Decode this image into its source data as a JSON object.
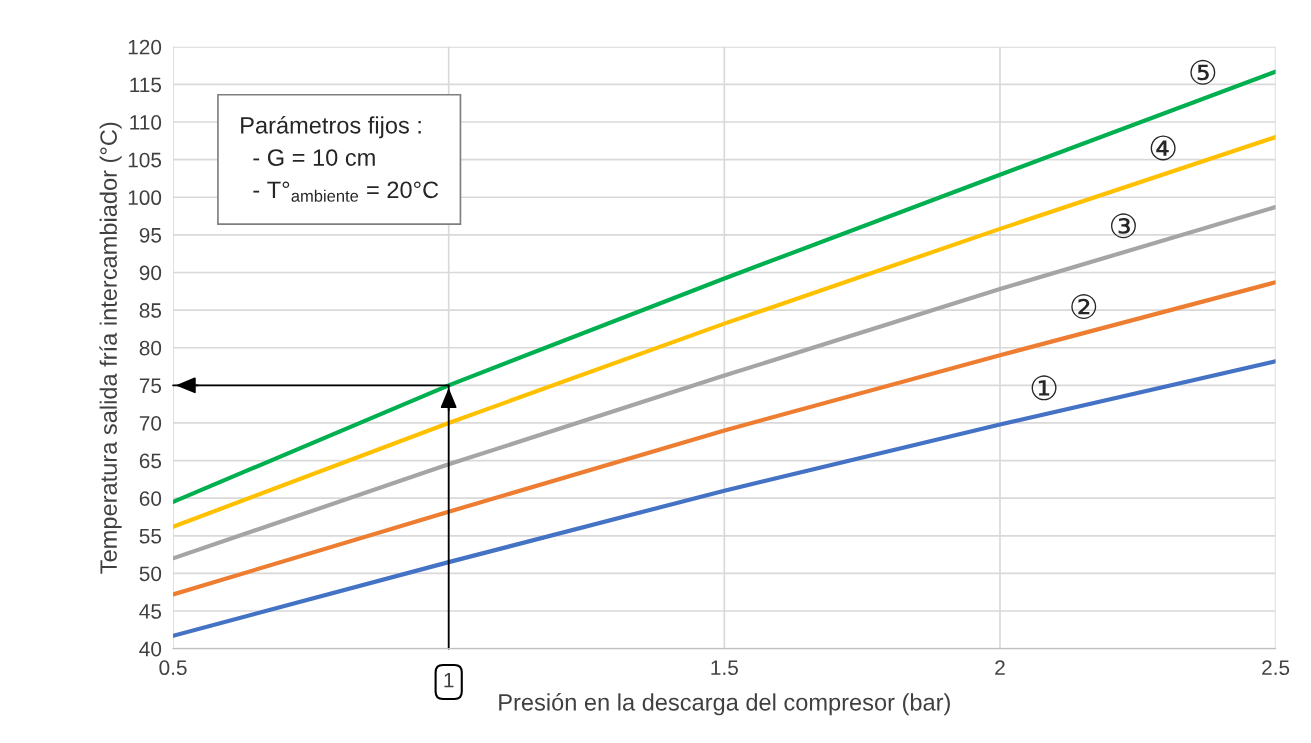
{
  "chart_data": {
    "type": "line",
    "xlabel": "Presión en la descarga del compresor (bar)",
    "ylabel": "Temperatura salida fría intercambiador (°C)",
    "x": [
      0.5,
      1,
      1.5,
      2,
      2.5
    ],
    "series": [
      {
        "name": "①",
        "color": "#4472c4",
        "values": [
          41.7,
          51.5,
          61,
          69.8,
          78.2
        ]
      },
      {
        "name": "②",
        "color": "#ed7d31",
        "values": [
          47.2,
          58.2,
          69,
          79,
          88.7
        ]
      },
      {
        "name": "③",
        "color": "#a5a5a5",
        "values": [
          52,
          64.5,
          76.3,
          87.8,
          98.7
        ]
      },
      {
        "name": "④",
        "color": "#ffc000",
        "values": [
          56.2,
          70,
          83.2,
          95.8,
          108
        ]
      },
      {
        "name": "⑤",
        "color": "#00b050",
        "values": [
          59.5,
          75,
          89.2,
          103,
          116.7
        ]
      }
    ],
    "xlim": [
      0.5,
      2.5
    ],
    "ylim": [
      40,
      120
    ],
    "xticks": [
      0.5,
      {
        "value": 1,
        "label": null
      },
      1.5,
      2,
      2.5
    ],
    "yticks": [
      40,
      45,
      50,
      55,
      60,
      65,
      70,
      75,
      80,
      85,
      90,
      95,
      100,
      105,
      110,
      115,
      120
    ],
    "grid": true,
    "marker": "none",
    "line_style": "solid",
    "ref_lines": [
      {
        "axis": "x",
        "value": 1,
        "label": "1",
        "color": "#000000"
      },
      {
        "axis": "y",
        "value": 75,
        "color": "#000000"
      }
    ],
    "annotations": [
      "Parámetros fijos :",
      "- G = 10 cm",
      "- T°$_{ambiente}$ = 20°C"
    ]
  }
}
